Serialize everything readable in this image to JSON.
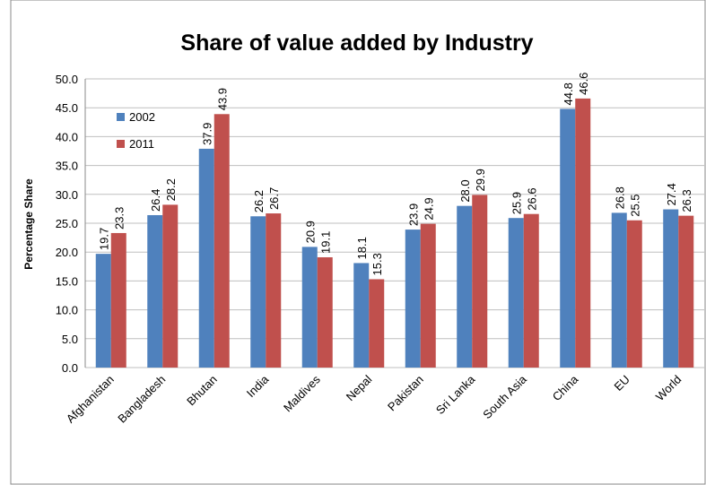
{
  "chart_data": {
    "type": "bar",
    "title": "Share of value added by Industry",
    "y_label": "Percentage Share",
    "categories": [
      "Afghanistan",
      "Bangladesh",
      "Bhutan",
      "India",
      "Maldives",
      "Nepal",
      "Pakistan",
      "Sri Lanka",
      "South Asia",
      "China",
      "EU",
      "World"
    ],
    "series": [
      {
        "name": "2002",
        "color": "#4f81bd",
        "values": [
          19.7,
          26.4,
          37.9,
          26.2,
          20.9,
          18.1,
          23.9,
          28.0,
          25.9,
          44.8,
          26.8,
          27.4
        ],
        "value_labels": [
          "19.7",
          "26.4",
          "37.9",
          "26.2",
          "20.9",
          "18.1",
          "23.9",
          "28.0",
          "25.9",
          "44.8",
          "26.8",
          "27.4"
        ]
      },
      {
        "name": "2011",
        "color": "#c0504d",
        "values": [
          23.3,
          28.2,
          43.9,
          26.7,
          19.1,
          15.3,
          24.9,
          29.9,
          26.6,
          46.6,
          25.5,
          26.3
        ],
        "value_labels": [
          "23.3",
          "28.2",
          "43.9",
          "26.7",
          "19.1",
          "15.3",
          "24.9",
          "29.9",
          "26.6",
          "46.6",
          "25.5",
          "26.3"
        ]
      }
    ],
    "ylim": [
      0,
      50
    ],
    "yticks": [
      {
        "value": 0,
        "label": "0.0"
      },
      {
        "value": 5,
        "label": "5.0"
      },
      {
        "value": 10,
        "label": "10.0"
      },
      {
        "value": 15,
        "label": "15.0"
      },
      {
        "value": 20,
        "label": "20.0"
      },
      {
        "value": 25,
        "label": "25.0"
      },
      {
        "value": 30,
        "label": "30.0"
      },
      {
        "value": 35,
        "label": "35.0"
      },
      {
        "value": 40,
        "label": "40.0"
      },
      {
        "value": 45,
        "label": "45.0"
      },
      {
        "value": 50,
        "label": "50.0"
      }
    ],
    "grid": true,
    "legend": "upper left"
  }
}
